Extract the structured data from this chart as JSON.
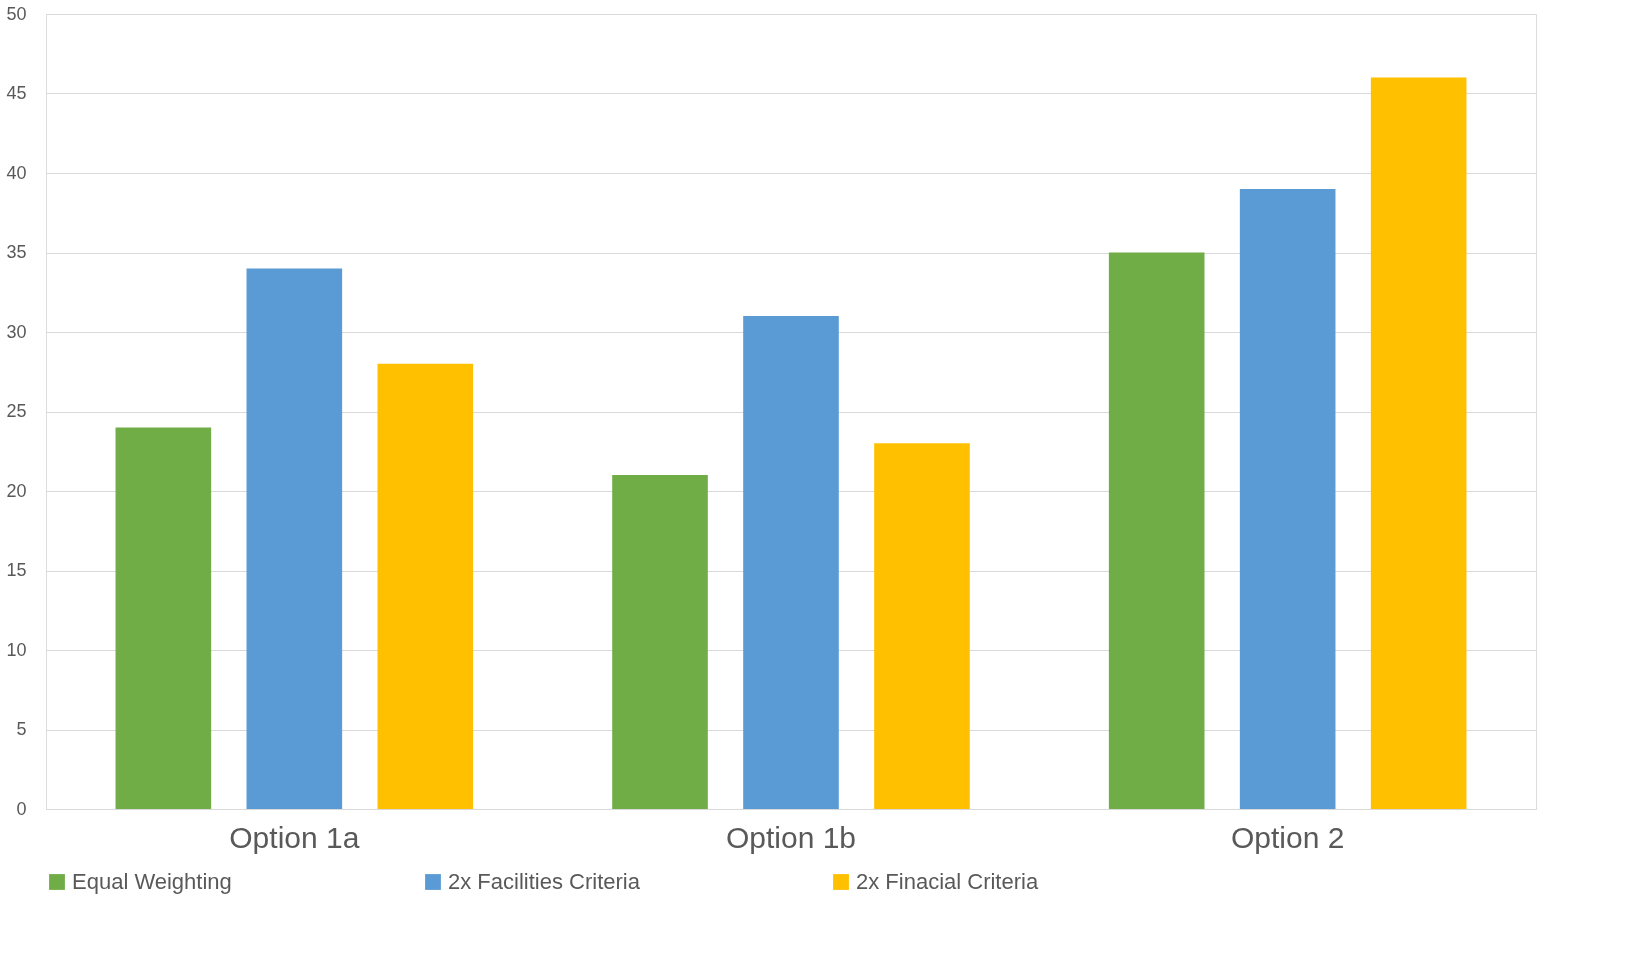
{
  "chart_data": {
    "type": "bar",
    "categories": [
      "Option 1a",
      "Option 1b",
      "Option 2"
    ],
    "series": [
      {
        "name": "Equal Weighting",
        "color": "#70ad47",
        "values": [
          24,
          21,
          35
        ]
      },
      {
        "name": "2x Facilities Criteria",
        "color": "#5b9bd5",
        "values": [
          34,
          31,
          39
        ]
      },
      {
        "name": "2x Finacial Criteria",
        "color": "#ffc000",
        "values": [
          28,
          23,
          46
        ]
      }
    ],
    "ylim": [
      0,
      50
    ],
    "yticks": [
      0,
      5,
      10,
      15,
      20,
      25,
      30,
      35,
      40,
      45,
      50
    ],
    "grid": "y",
    "legend": "bottom"
  }
}
